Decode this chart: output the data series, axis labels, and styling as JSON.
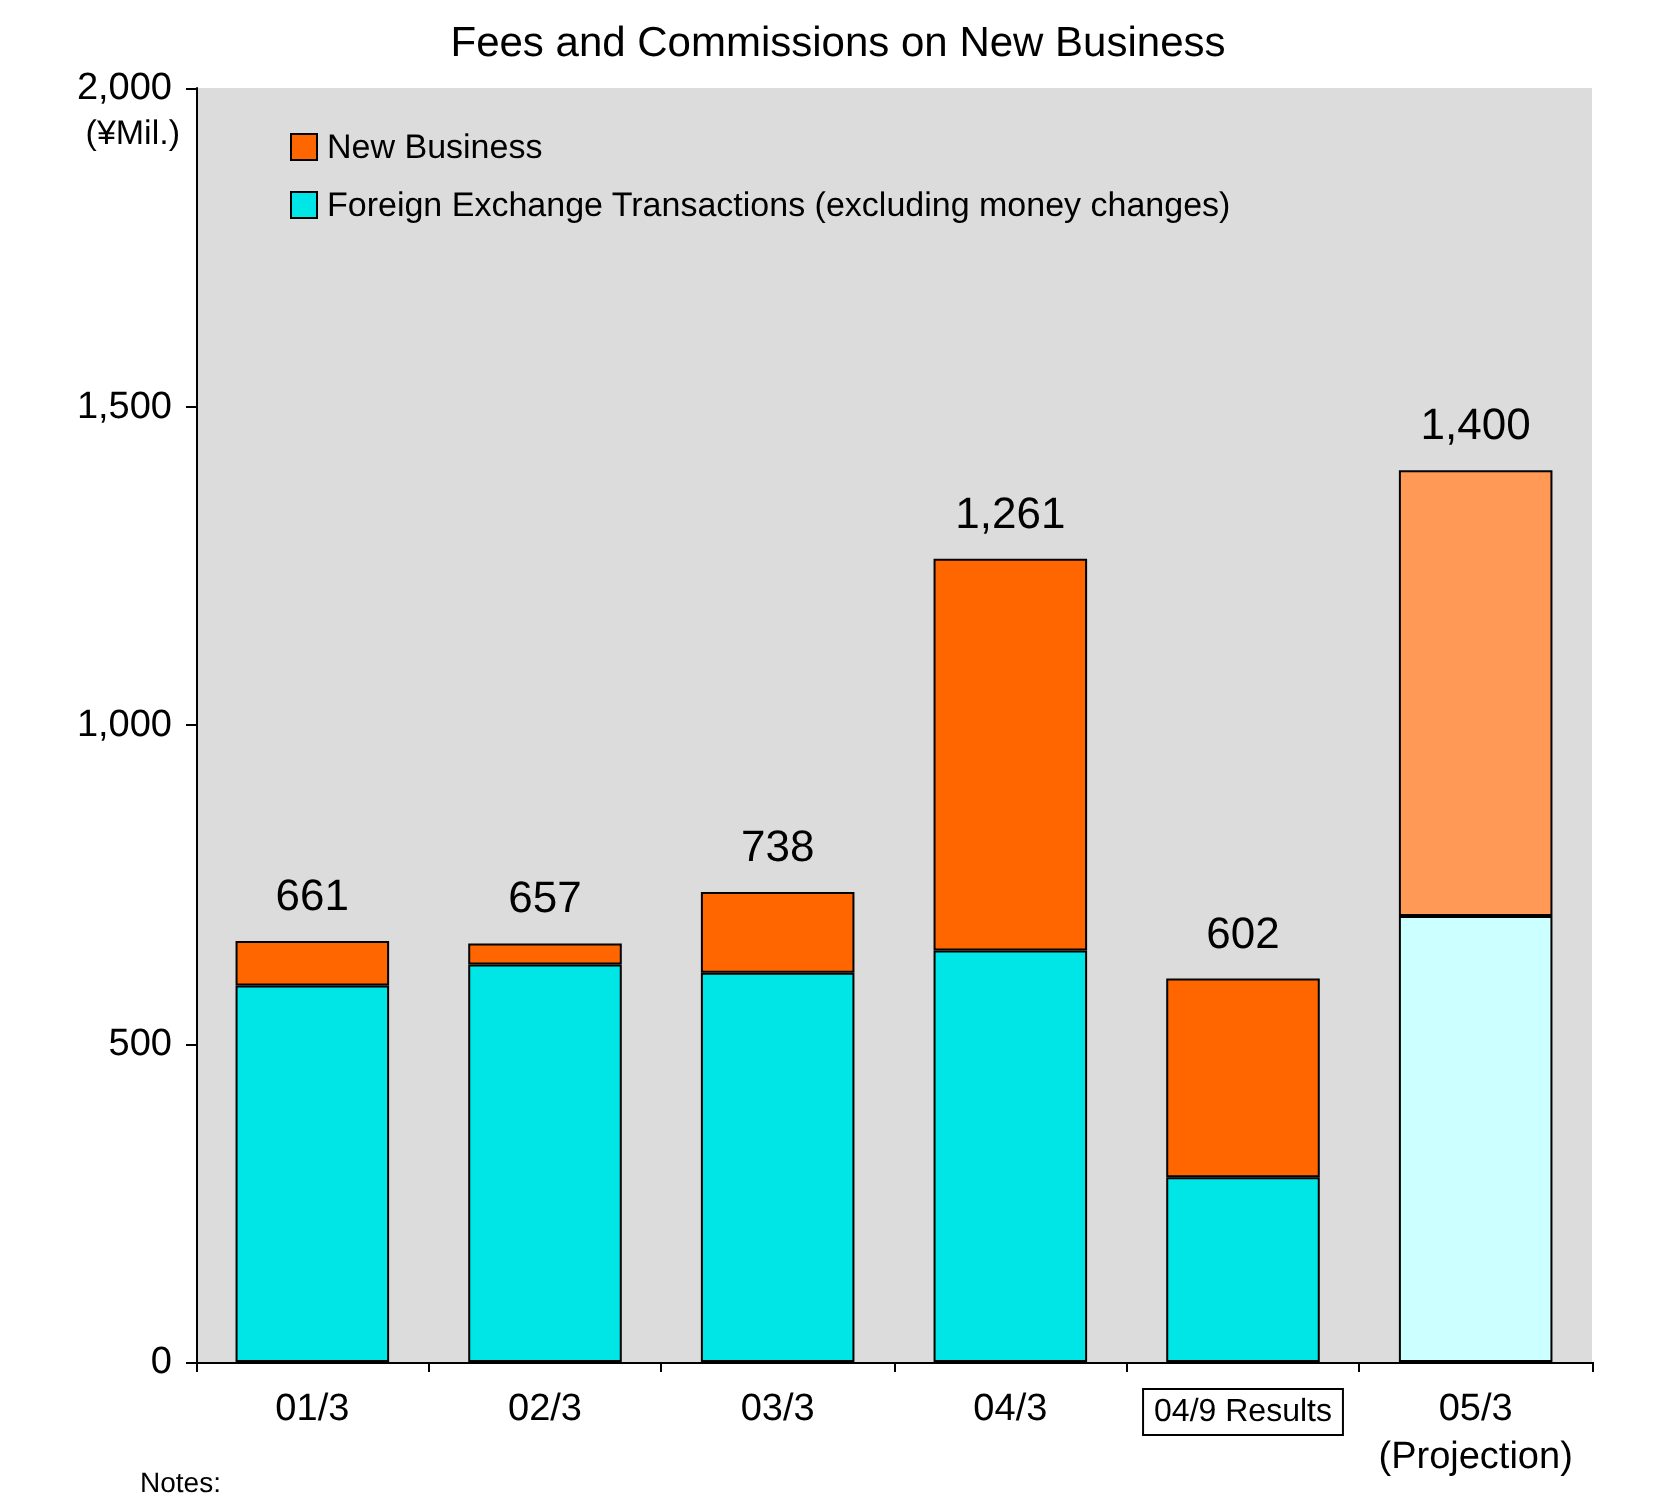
{
  "chart_data": {
    "type": "bar",
    "title": "Fees and Commissions on New Business",
    "ylabel": "(¥Mil.)",
    "categories": [
      "01/3",
      "02/3",
      "03/3",
      "04/3",
      "04/9 Results",
      "05/3"
    ],
    "stacked": true,
    "series": [
      {
        "name": "Foreign Exchange Transactions (excluding money changes)",
        "color": "#00e5e5",
        "colors": [
          "#00e5e5",
          "#00e5e5",
          "#00e5e5",
          "#00e5e5",
          "#00e5e5",
          "#ccffff"
        ],
        "values": [
          591,
          624,
          611,
          646,
          290,
          700
        ]
      },
      {
        "name": "New Business",
        "color": "#ff6600",
        "colors": [
          "#ff6600",
          "#ff6600",
          "#ff6600",
          "#ff6600",
          "#ff6600",
          "#ff9955"
        ],
        "values": [
          70,
          33,
          127,
          615,
          312,
          700
        ]
      }
    ],
    "totals": [
      "661",
      "657",
      "738",
      "1,261",
      "602",
      "1,400"
    ],
    "ylim": [
      0,
      2000
    ],
    "yticks": [
      0,
      {
        "value": 500,
        "label": "500"
      },
      {
        "value": 1000,
        "label": "1,000"
      },
      {
        "value": 1500,
        "label": "1,500"
      },
      {
        "value": 2000,
        "label": "2,000"
      }
    ],
    "grid": false,
    "legend": "top left",
    "annotations": [
      "(Projection)",
      "Notes:"
    ]
  }
}
